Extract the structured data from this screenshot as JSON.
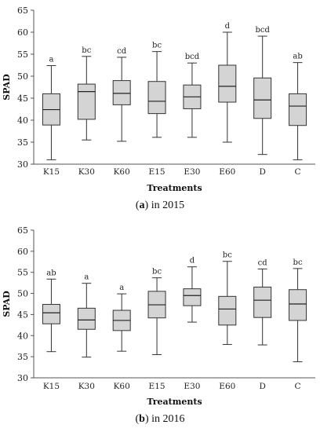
{
  "chart_data": [
    {
      "type": "box",
      "xlabel": "Treatments",
      "ylabel": "SPAD",
      "ylim": [
        30,
        65
      ],
      "yticks": [
        30,
        35,
        40,
        45,
        50,
        55,
        60,
        65
      ],
      "categories": [
        "K15",
        "K30",
        "K60",
        "E15",
        "E30",
        "E60",
        "D",
        "C"
      ],
      "min": [
        31.0,
        35.5,
        35.2,
        36.1,
        36.1,
        35.0,
        32.2,
        31.0
      ],
      "q1": [
        38.9,
        40.2,
        43.5,
        41.5,
        42.6,
        44.1,
        40.4,
        38.8
      ],
      "median": [
        42.4,
        46.5,
        46.1,
        44.3,
        45.3,
        47.7,
        44.6,
        43.2
      ],
      "q3": [
        46.0,
        48.2,
        49.0,
        48.8,
        48.0,
        52.5,
        49.6,
        46.0
      ],
      "max": [
        52.4,
        54.5,
        54.3,
        55.6,
        53.0,
        60.0,
        59.1,
        53.1
      ],
      "group_labels": [
        "a",
        "bc",
        "cd",
        "bc",
        "bcd",
        "d",
        "bcd",
        "ab"
      ],
      "grid": false,
      "caption": {
        "letter": "a",
        "text": "in 2015"
      }
    },
    {
      "type": "box",
      "xlabel": "Treatments",
      "ylabel": "SPAD",
      "ylim": [
        30,
        65
      ],
      "yticks": [
        30,
        35,
        40,
        45,
        50,
        55,
        60,
        65
      ],
      "categories": [
        "K15",
        "K30",
        "K60",
        "E15",
        "E30",
        "E60",
        "D",
        "C"
      ],
      "min": [
        36.2,
        34.9,
        36.3,
        35.5,
        43.2,
        37.9,
        37.8,
        33.8
      ],
      "q1": [
        42.8,
        41.5,
        41.2,
        44.2,
        47.1,
        42.5,
        44.3,
        43.6
      ],
      "median": [
        45.4,
        43.7,
        43.6,
        47.3,
        49.5,
        46.3,
        48.4,
        47.5
      ],
      "q3": [
        47.4,
        46.5,
        46.0,
        50.5,
        51.1,
        49.3,
        51.5,
        50.9
      ],
      "max": [
        53.4,
        52.4,
        49.9,
        53.7,
        56.3,
        57.6,
        55.8,
        55.9
      ],
      "group_labels": [
        "ab",
        "a",
        "a",
        "bc",
        "d",
        "bc",
        "cd",
        "bc"
      ],
      "grid": false,
      "caption": {
        "letter": "b",
        "text": "in 2016"
      }
    }
  ]
}
